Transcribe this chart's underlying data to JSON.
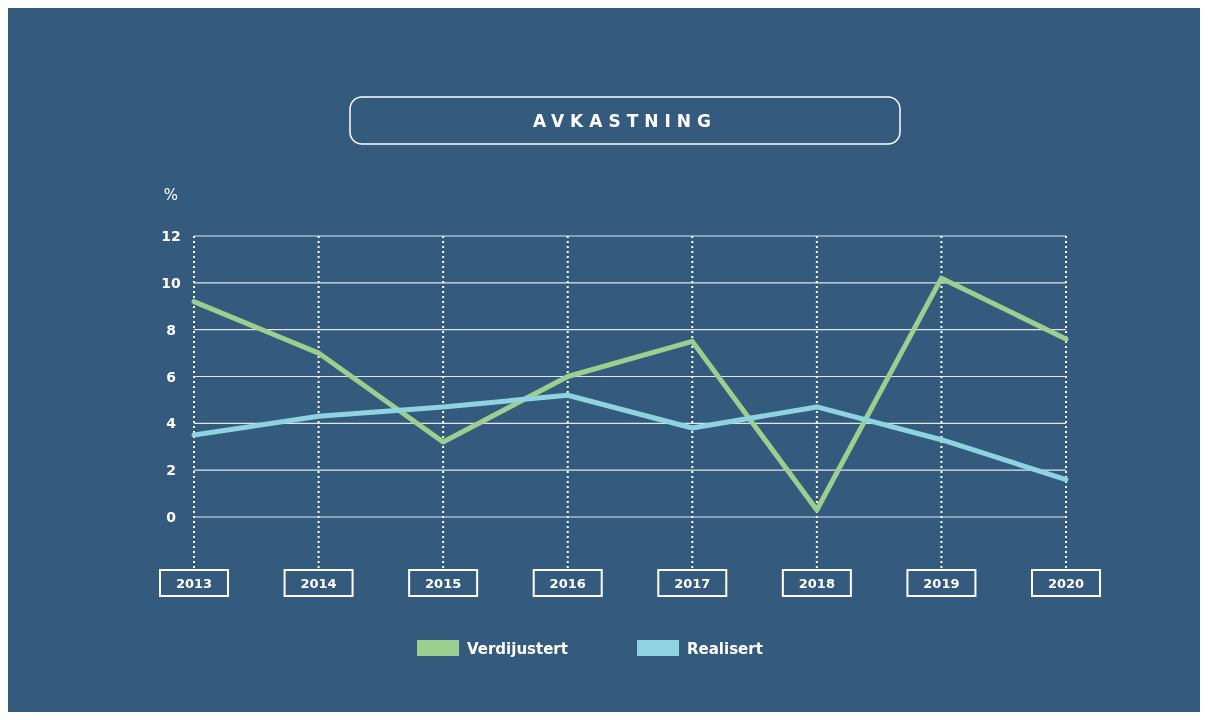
{
  "chart_data": {
    "type": "line",
    "title": "AVKASTNING",
    "ylabel": "%",
    "categories": [
      "2013",
      "2014",
      "2015",
      "2016",
      "2017",
      "2018",
      "2019",
      "2020"
    ],
    "series": [
      {
        "name": "Verdijustert",
        "color": "#9ccf8f",
        "values": [
          9.2,
          7.0,
          3.2,
          6.0,
          7.5,
          0.3,
          10.2,
          7.6
        ]
      },
      {
        "name": "Realisert",
        "color": "#8fd3e0",
        "values": [
          3.5,
          4.3,
          4.7,
          5.2,
          3.8,
          4.7,
          3.3,
          1.6
        ]
      }
    ],
    "ylim": [
      0,
      12
    ],
    "yticks": [
      0,
      2,
      4,
      6,
      8,
      10,
      12
    ],
    "grid": true,
    "legend": "bottom",
    "marker": "none",
    "line_style": "solid"
  }
}
